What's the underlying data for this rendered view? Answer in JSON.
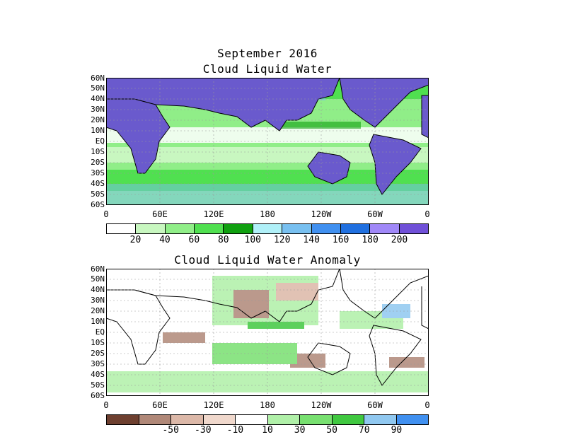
{
  "header": {
    "month": "September 2016"
  },
  "panel1": {
    "title": "Cloud Liquid Water",
    "colorbar": {
      "colors": [
        "#ffffff",
        "#c8f7c0",
        "#90ee88",
        "#50e050",
        "#10a010",
        "#b0f0f8",
        "#78c0f0",
        "#4090f0",
        "#2070e0",
        "#a088f8",
        "#7050d8"
      ],
      "labels": [
        "20",
        "40",
        "60",
        "80",
        "100",
        "120",
        "140",
        "160",
        "180",
        "200"
      ]
    }
  },
  "panel2": {
    "title": "Cloud Liquid Water Anomaly",
    "colorbar": {
      "colors": [
        "#6e4030",
        "#b08878",
        "#dcb8a8",
        "#f0d8cc",
        "#ffffff",
        "#b0f0a8",
        "#78e070",
        "#40c840",
        "#90c8f0",
        "#4090f0"
      ],
      "labels": [
        "-50",
        "-30",
        "-10",
        "10",
        "30",
        "50",
        "70",
        "90"
      ]
    }
  },
  "axes": {
    "lat_labels": [
      "60N",
      "50N",
      "40N",
      "30N",
      "20N",
      "10N",
      "EQ",
      "10S",
      "20S",
      "30S",
      "40S",
      "50S",
      "60S"
    ],
    "lon_labels": [
      "0",
      "60E",
      "120E",
      "180",
      "120W",
      "60W",
      "0"
    ]
  },
  "colors": {
    "land": "#6a5acd",
    "coast": "#000000",
    "grid": "#999999"
  }
}
